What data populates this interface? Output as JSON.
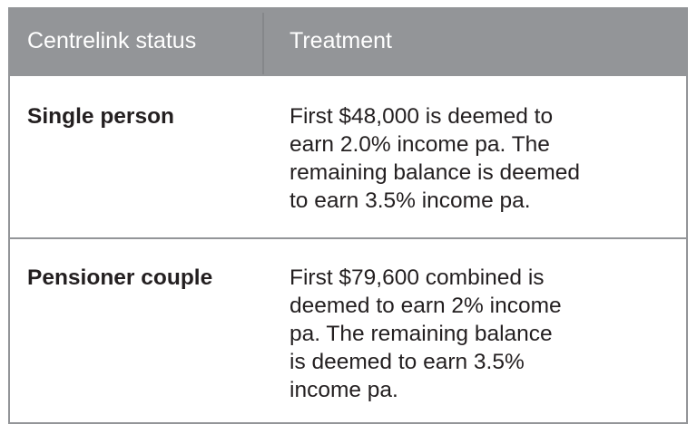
{
  "header": {
    "status": "Centrelink status",
    "treatment": "Treatment"
  },
  "rows": [
    {
      "status": "Single person",
      "treatment": "First $48,000 is deemed to\nearn 2.0% income pa. The\nremaining balance is deemed\nto earn 3.5% income pa."
    },
    {
      "status": "Pensioner couple",
      "treatment": "First $79,600 combined is\ndeemed to earn 2% income\npa. The remaining balance\nis deemed to earn 3.5%\nincome pa."
    }
  ],
  "colors": {
    "header_bg": "#939598",
    "header_text": "#ffffff",
    "border": "#939598"
  }
}
